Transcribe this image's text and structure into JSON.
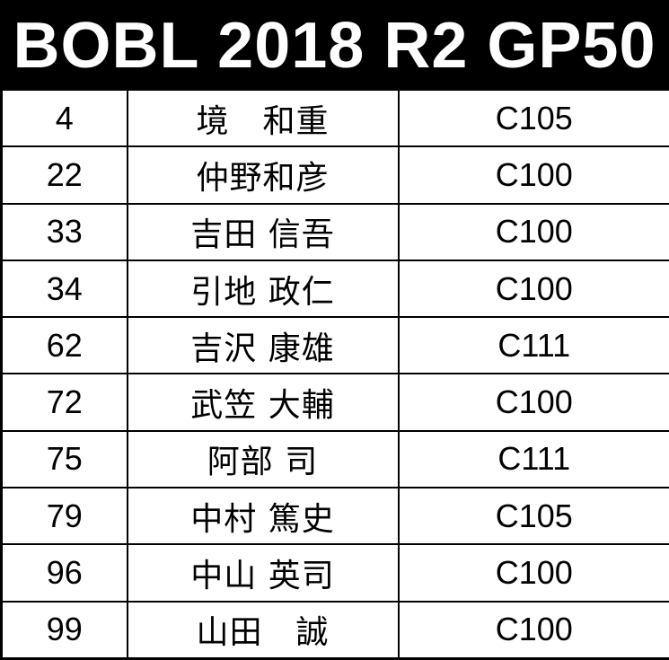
{
  "title": "BOBL 2018 R2 GP50",
  "rows": [
    {
      "number": "4",
      "name": "境　和重",
      "class": "C105"
    },
    {
      "number": "22",
      "name": "仲野和彦",
      "class": "C100"
    },
    {
      "number": "33",
      "name": "吉田 信吾",
      "class": "C100"
    },
    {
      "number": "34",
      "name": "引地 政仁",
      "class": "C100"
    },
    {
      "number": "62",
      "name": "吉沢 康雄",
      "class": "C111"
    },
    {
      "number": "72",
      "name": "武笠 大輔",
      "class": "C100"
    },
    {
      "number": "75",
      "name": "阿部 司",
      "class": "C111"
    },
    {
      "number": "79",
      "name": "中村 篤史",
      "class": "C105"
    },
    {
      "number": "96",
      "name": "中山 英司",
      "class": "C100"
    },
    {
      "number": "99",
      "name": "山田　誠",
      "class": "C100"
    }
  ]
}
